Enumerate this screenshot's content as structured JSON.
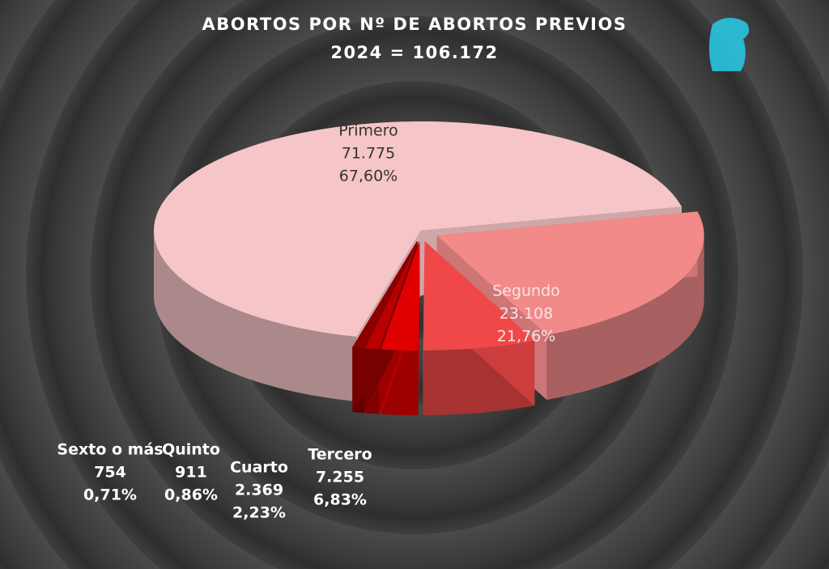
{
  "chart_data": {
    "type": "pie3d",
    "title": "ABORTOS POR Nº DE ABORTOS PREVIOS",
    "subtitle": "2024 = 106.172",
    "categories": [
      "Primero",
      "Segundo",
      "Tercero",
      "Cuarto",
      "Quinto",
      "Sexto o más"
    ],
    "values": [
      71775,
      23108,
      7255,
      2369,
      911,
      754
    ],
    "value_labels": [
      "71.775",
      "23.108",
      "7.255",
      "2.369",
      "911",
      "754"
    ],
    "percent_labels": [
      "67,60%",
      "21,76%",
      "6,83%",
      "2,23%",
      "0,86%",
      "0,71%"
    ],
    "colors": [
      "#f5c5c7",
      "#f28a8a",
      "#f04848",
      "#e00000",
      "#b80000",
      "#8c0000"
    ]
  }
}
